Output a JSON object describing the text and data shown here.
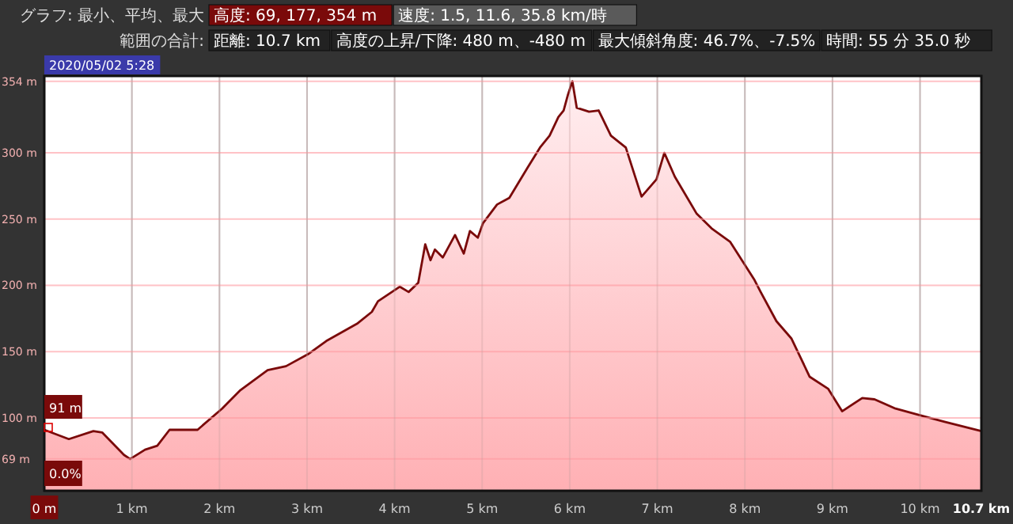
{
  "chart_data": {
    "type": "area",
    "x": [
      0,
      0.28,
      0.56,
      0.66,
      0.91,
      0.98,
      1.15,
      1.29,
      1.43,
      1.75,
      2.03,
      2.24,
      2.55,
      2.76,
      3.01,
      3.22,
      3.57,
      3.74,
      3.81,
      4.06,
      4.16,
      4.27,
      4.35,
      4.41,
      4.46,
      4.55,
      4.69,
      4.79,
      4.86,
      4.95,
      5.01,
      5.17,
      5.31,
      5.52,
      5.66,
      5.77,
      5.87,
      5.93,
      5.98,
      6.03,
      6.08,
      6.22,
      6.33,
      6.47,
      6.64,
      6.82,
      6.99,
      7.08,
      7.2,
      7.45,
      7.62,
      7.83,
      8.11,
      8.18,
      8.36,
      8.53,
      8.74,
      8.95,
      9.11,
      9.34,
      9.48,
      9.72,
      10.0,
      10.28,
      10.7
    ],
    "series": [
      {
        "color": "#7a0a0a",
        "values": [
          91,
          84,
          90,
          89,
          72,
          69,
          76,
          79,
          91,
          91,
          107,
          121,
          136,
          139,
          148,
          158,
          171,
          180,
          188,
          199,
          195,
          202,
          231,
          219,
          227,
          221,
          238,
          224,
          241,
          236,
          247,
          261,
          266,
          289,
          304,
          313,
          327,
          332,
          344,
          354,
          334,
          331,
          332,
          313,
          304,
          267,
          280,
          300,
          282,
          254,
          243,
          233,
          204,
          195,
          173,
          160,
          131,
          122,
          105,
          115,
          114,
          107,
          102,
          97,
          90
        ]
      }
    ],
    "xlim": [
      0,
      10.7
    ],
    "xticks": [
      {
        "value": 0,
        "label": "0 m"
      },
      {
        "value": 1,
        "label": "1 km"
      },
      {
        "value": 2,
        "label": "2 km"
      },
      {
        "value": 3,
        "label": "3 km"
      },
      {
        "value": 4,
        "label": "4 km"
      },
      {
        "value": 5,
        "label": "5 km"
      },
      {
        "value": 6,
        "label": "6 km"
      },
      {
        "value": 7,
        "label": "7 km"
      },
      {
        "value": 8,
        "label": "8 km"
      },
      {
        "value": 9,
        "label": "9 km"
      },
      {
        "value": 10,
        "label": "10 km"
      },
      {
        "value": 10.7,
        "label": "10.7 km"
      }
    ],
    "ylim": [
      45,
      358
    ],
    "yticks": [
      {
        "value": 69,
        "label": "69 m"
      },
      {
        "value": 100,
        "label": "100 m"
      },
      {
        "value": 150,
        "label": "150 m"
      },
      {
        "value": 200,
        "label": "200 m"
      },
      {
        "value": 250,
        "label": "250 m"
      },
      {
        "value": 300,
        "label": "300 m"
      },
      {
        "value": 354,
        "label": "354 m"
      }
    ],
    "grid": true,
    "annotations": [
      "グラフ: 最小、平均、最大",
      "高度: 69, 177, 354 m",
      "速度: 1.5, 11.6, 35.8 km/時",
      "範囲の合計:",
      "距離: 10.7 km",
      "高度の上昇/下降: 480 m、-480 m",
      "最大傾斜角度: 46.7%、-7.5%",
      "時間: 55 分 35.0 秒",
      "2020/05/02 5:28",
      "0.0%",
      {
        "text": "91 m",
        "x": 0,
        "y": 91
      }
    ]
  }
}
